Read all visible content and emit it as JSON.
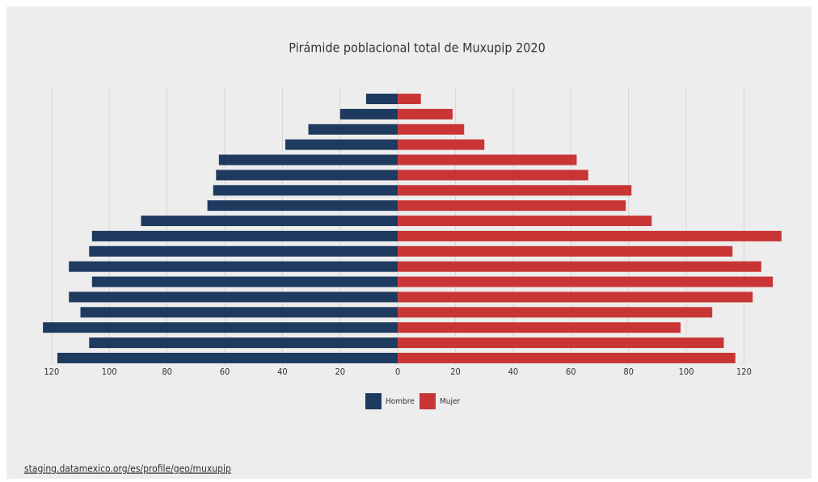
{
  "chart_data": {
    "type": "pyramid",
    "title": "Pirámide poblacional total de Muxupip 2020",
    "series": [
      {
        "name": "Hombre",
        "color": "#1f3a5f",
        "side": "left",
        "values": [
          11,
          20,
          31,
          39,
          62,
          63,
          64,
          66,
          89,
          106,
          107,
          114,
          106,
          114,
          110,
          123,
          107,
          118
        ]
      },
      {
        "name": "Mujer",
        "color": "#c93535",
        "side": "right",
        "values": [
          8,
          19,
          23,
          30,
          62,
          66,
          81,
          79,
          88,
          133,
          116,
          126,
          130,
          123,
          109,
          98,
          113,
          117
        ]
      }
    ],
    "xlim": [
      -125,
      135
    ],
    "xticks": [
      {
        "value": -120,
        "label": "120"
      },
      {
        "value": -100,
        "label": "100"
      },
      {
        "value": -80,
        "label": "80"
      },
      {
        "value": -60,
        "label": "60"
      },
      {
        "value": -40,
        "label": "40"
      },
      {
        "value": -20,
        "label": "20"
      },
      0,
      20,
      40,
      60,
      80,
      100,
      120
    ],
    "grid": true,
    "legend": "bottom",
    "source": "staging.datamexico.org/es/profile/geo/muxupip"
  }
}
